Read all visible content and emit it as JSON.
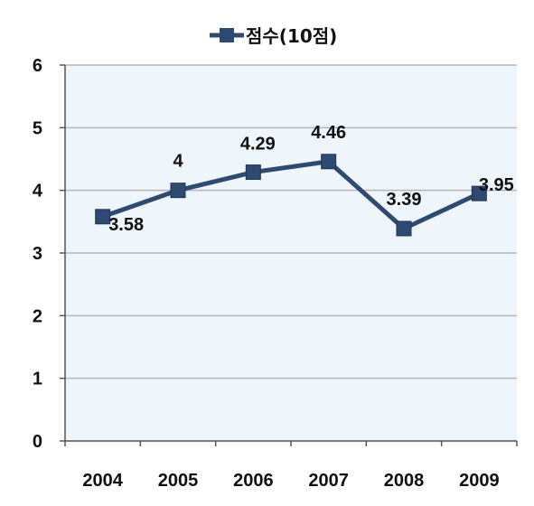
{
  "chart_data": {
    "type": "line",
    "categories": [
      "2004",
      "2005",
      "2006",
      "2007",
      "2008",
      "2009"
    ],
    "series": [
      {
        "name": "점수(10점)",
        "values": [
          3.58,
          4,
          4.29,
          4.46,
          3.39,
          3.95
        ],
        "labels": [
          "3.58",
          "4",
          "4.29",
          "4.46",
          "3.39",
          "3.95"
        ]
      }
    ],
    "ylim": [
      0,
      6
    ],
    "yticks": [
      "0",
      "1",
      "2",
      "3",
      "4",
      "5",
      "6"
    ],
    "grid": true,
    "legend_position": "top",
    "colors": {
      "series": "#2f4a72",
      "plot_background": "#eef5fb",
      "grid": "#b5b5b5"
    }
  }
}
